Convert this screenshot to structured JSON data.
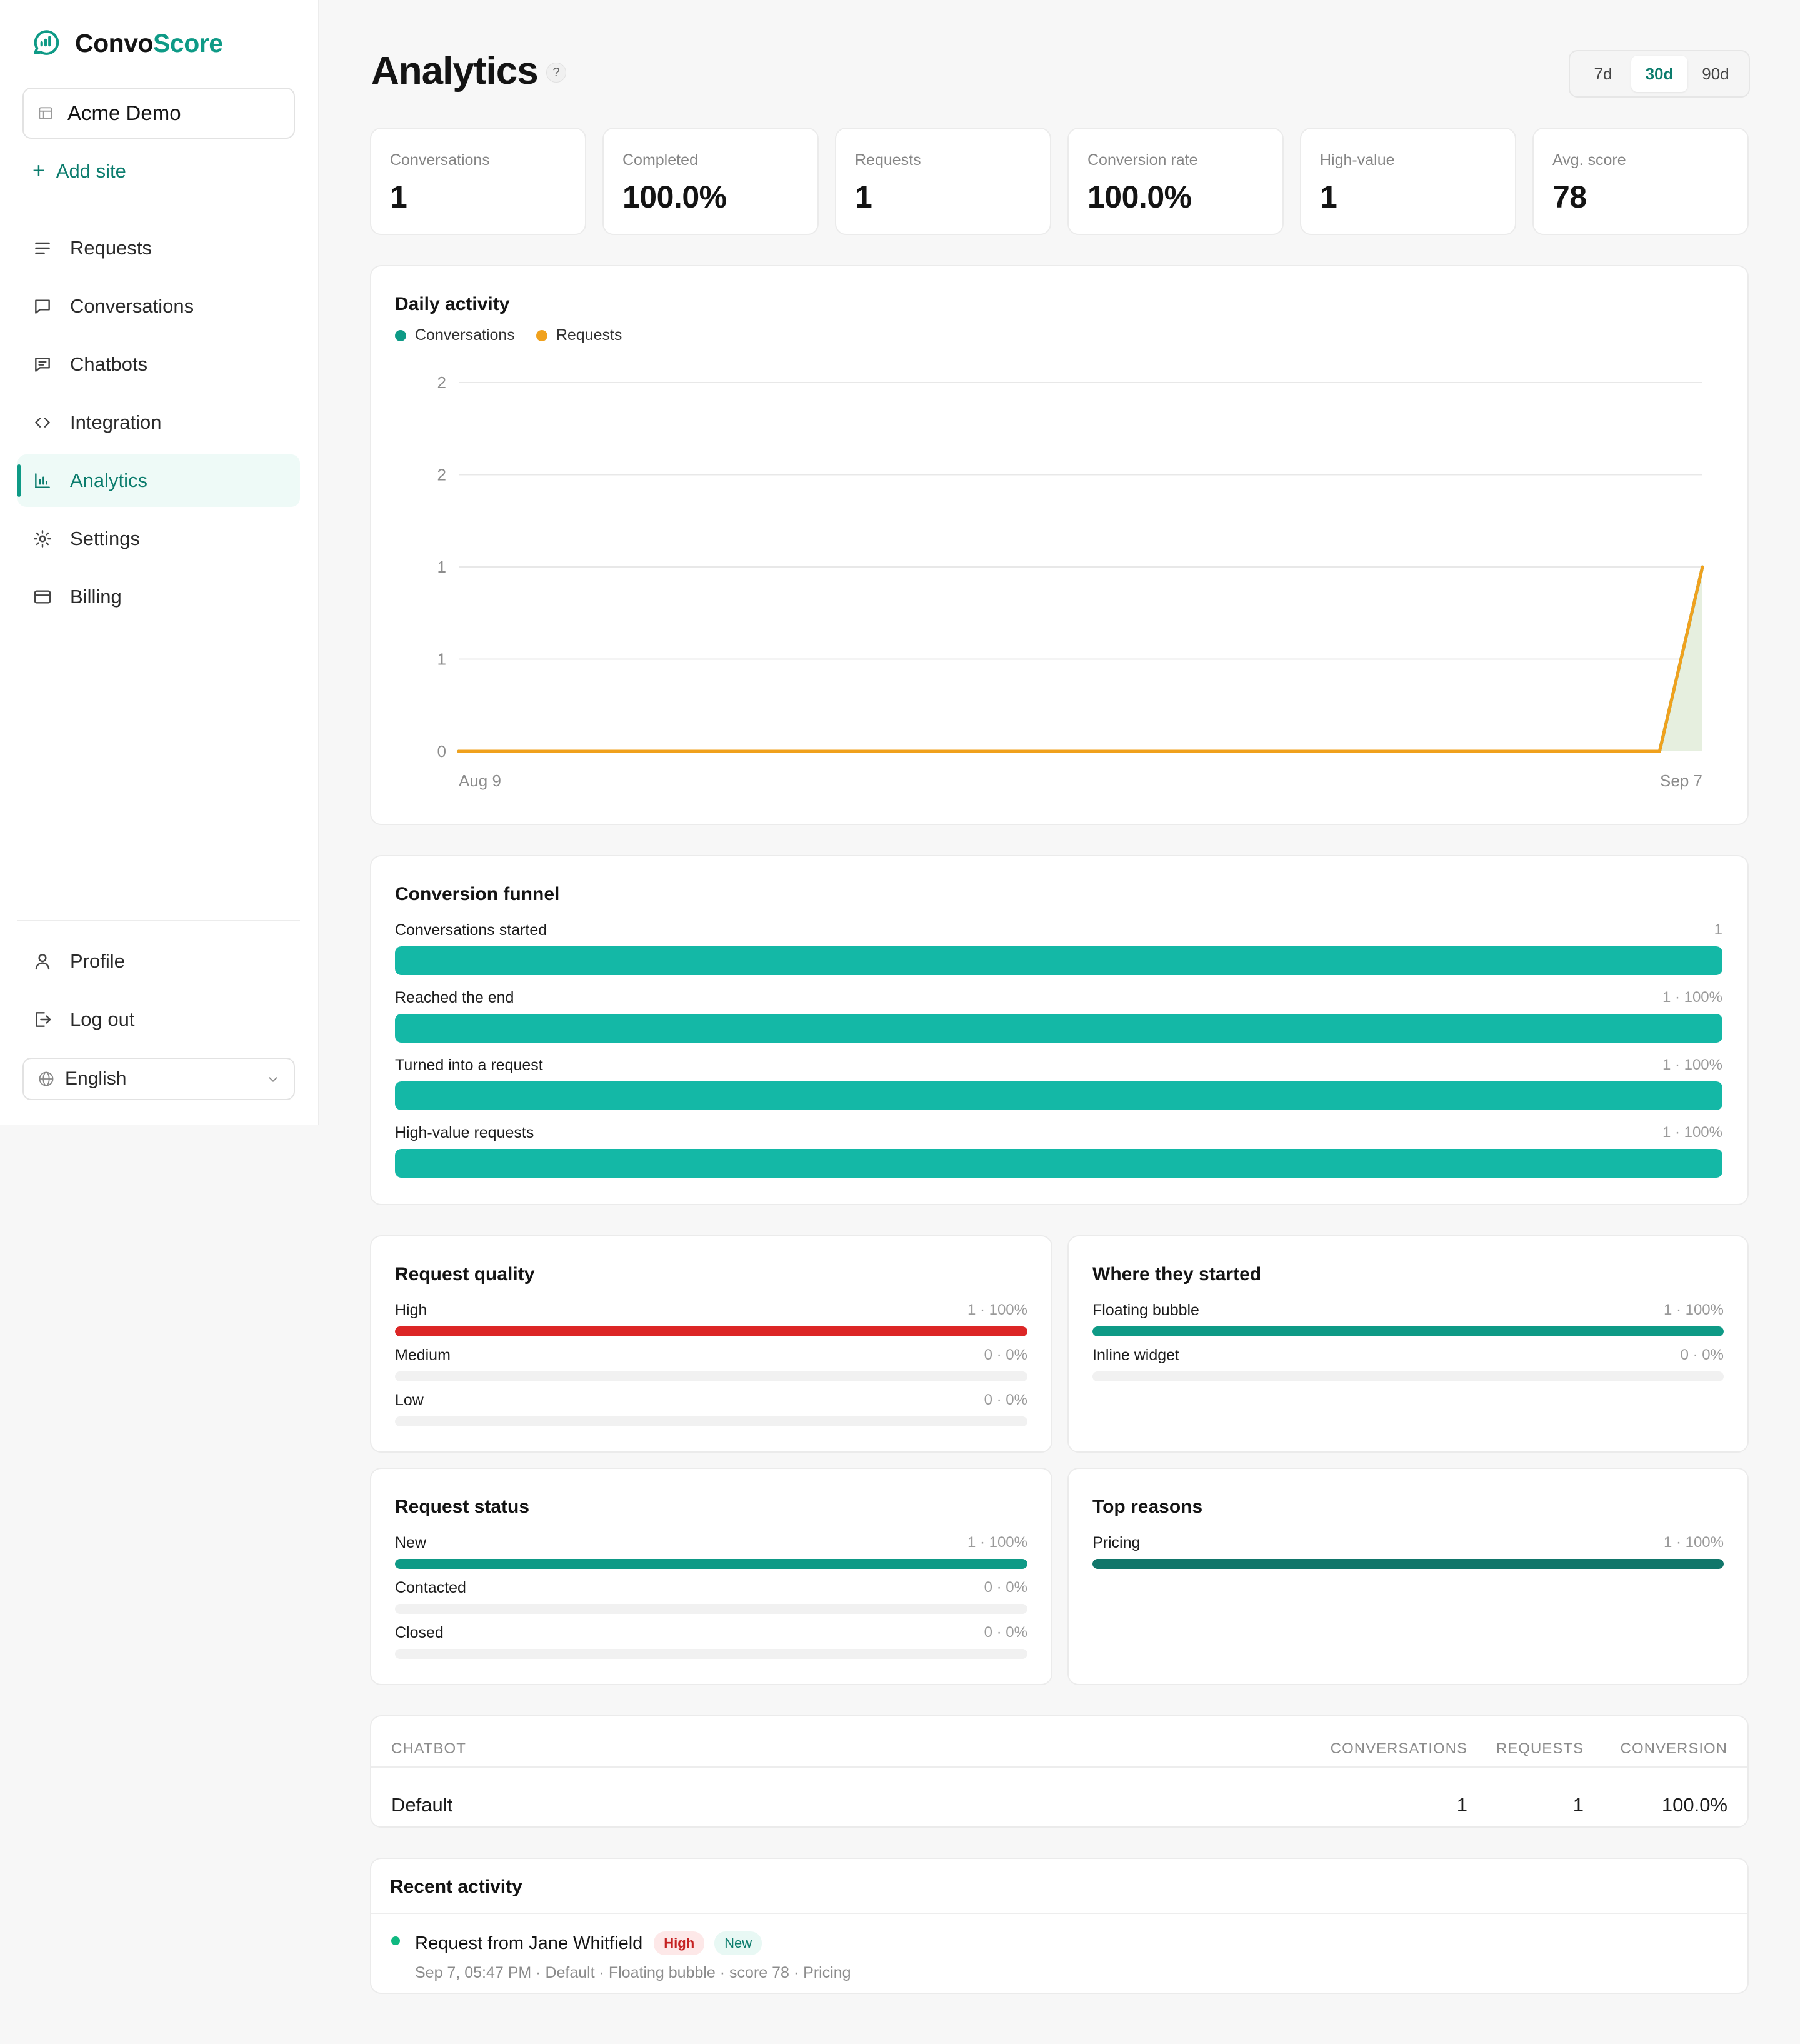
{
  "brand": {
    "name_part1": "Convo",
    "name_part2": "Score"
  },
  "sidebar": {
    "site": "Acme Demo",
    "add_site": "Add site",
    "items": [
      {
        "label": "Requests",
        "icon": "list-icon"
      },
      {
        "label": "Conversations",
        "icon": "chat-icon"
      },
      {
        "label": "Chatbots",
        "icon": "chatbot-icon"
      },
      {
        "label": "Integration",
        "icon": "code-icon"
      },
      {
        "label": "Analytics",
        "icon": "bar-chart-icon",
        "active": true
      },
      {
        "label": "Settings",
        "icon": "gear-icon"
      },
      {
        "label": "Billing",
        "icon": "card-icon"
      }
    ],
    "bottom_items": [
      {
        "label": "Profile",
        "icon": "user-icon"
      },
      {
        "label": "Log out",
        "icon": "logout-icon"
      }
    ],
    "language": "English"
  },
  "header": {
    "title": "Analytics",
    "help": "?",
    "ranges": [
      "7d",
      "30d",
      "90d"
    ],
    "active_range": "30d"
  },
  "stats": [
    {
      "label": "Conversations",
      "value": "1"
    },
    {
      "label": "Completed",
      "value": "100.0%"
    },
    {
      "label": "Requests",
      "value": "1"
    },
    {
      "label": "Conversion rate",
      "value": "100.0%"
    },
    {
      "label": "High-value",
      "value": "1"
    },
    {
      "label": "Avg. score",
      "value": "78"
    }
  ],
  "daily_activity": {
    "title": "Daily activity",
    "legend": [
      "Conversations",
      "Requests"
    ]
  },
  "chart_data": {
    "type": "line",
    "title": "Daily activity",
    "x": [
      "Aug 9",
      "Sep 6",
      "Sep 7"
    ],
    "xticks": [
      "Aug 9",
      "Sep 7"
    ],
    "yticks": [
      "0",
      "1",
      "1",
      "2",
      "2"
    ],
    "ylim": [
      0,
      2
    ],
    "series": [
      {
        "name": "Conversations",
        "color": "#0e9a86",
        "values": [
          0,
          0,
          1
        ]
      },
      {
        "name": "Requests",
        "color": "#f0a11d",
        "values": [
          0,
          0,
          1
        ]
      }
    ],
    "grid": true,
    "legend": "top-left"
  },
  "funnel": {
    "title": "Conversion funnel",
    "rows": [
      {
        "name": "Conversations started",
        "count": "1",
        "fraction": 1
      },
      {
        "name": "Reached the end",
        "count": "1 · 100%",
        "fraction": 1
      },
      {
        "name": "Turned into a request",
        "count": "1 · 100%",
        "fraction": 1
      },
      {
        "name": "High-value requests",
        "count": "1 · 100%",
        "fraction": 1
      }
    ]
  },
  "request_quality": {
    "title": "Request quality",
    "rows": [
      {
        "name": "High",
        "count": "1 · 100%",
        "fraction": 1,
        "color": "#dc2626"
      },
      {
        "name": "Medium",
        "count": "0 · 0%",
        "fraction": 0,
        "color": "#f0a11d"
      },
      {
        "name": "Low",
        "count": "0 · 0%",
        "fraction": 0,
        "color": "#9ca3af"
      }
    ]
  },
  "where_started": {
    "title": "Where they started",
    "rows": [
      {
        "name": "Floating bubble",
        "count": "1 · 100%",
        "fraction": 1,
        "color": "#0e9a86"
      },
      {
        "name": "Inline widget",
        "count": "0 · 0%",
        "fraction": 0,
        "color": "#0e9a86"
      }
    ]
  },
  "request_status": {
    "title": "Request status",
    "rows": [
      {
        "name": "New",
        "count": "1 · 100%",
        "fraction": 1,
        "color": "#0e9a86"
      },
      {
        "name": "Contacted",
        "count": "0 · 0%",
        "fraction": 0,
        "color": "#0e9a86"
      },
      {
        "name": "Closed",
        "count": "0 · 0%",
        "fraction": 0,
        "color": "#0e9a86"
      }
    ]
  },
  "top_reasons": {
    "title": "Top reasons",
    "rows": [
      {
        "name": "Pricing",
        "count": "1 · 100%",
        "fraction": 1,
        "color": "#11766a"
      }
    ]
  },
  "chatbot_table": {
    "headers": [
      "CHATBOT",
      "CONVERSATIONS",
      "REQUESTS",
      "CONVERSION"
    ],
    "rows": [
      {
        "chatbot": "Default",
        "conversations": "1",
        "requests": "1",
        "conversion": "100.0%"
      }
    ]
  },
  "recent_activity": {
    "title": "Recent activity",
    "items": [
      {
        "title": "Request from Jane Whitfield",
        "badges": [
          "High",
          "New"
        ],
        "meta": "Sep 7, 05:47 PM · Default · Floating bubble · score 78 · Pricing"
      }
    ]
  }
}
